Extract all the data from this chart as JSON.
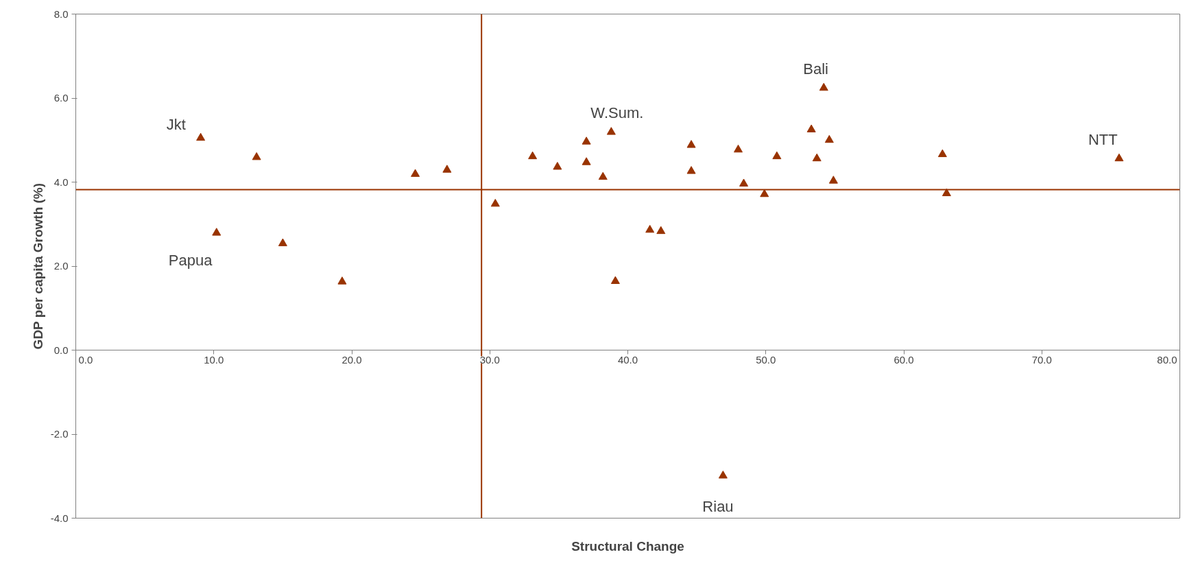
{
  "chart_data": {
    "type": "scatter",
    "xlabel": "Structural Change",
    "ylabel": "GDP per capita Growth (%)",
    "x": [
      9.05,
      10.2,
      13.1,
      15.0,
      19.3,
      24.6,
      26.9,
      30.4,
      33.1,
      34.9,
      37.0,
      37.0,
      38.2,
      38.8,
      39.1,
      41.6,
      42.4,
      44.6,
      44.6,
      46.9,
      48.0,
      48.4,
      49.9,
      50.8,
      53.3,
      54.2,
      53.7,
      54.6,
      54.9,
      62.8,
      63.1,
      75.6
    ],
    "series": [
      {
        "color": "#993300",
        "values": [
          5.05,
          2.79,
          4.59,
          2.54,
          1.63,
          4.19,
          4.29,
          3.48,
          4.61,
          4.36,
          4.96,
          4.47,
          4.12,
          5.19,
          1.64,
          2.86,
          2.83,
          4.26,
          4.88,
          -2.99,
          4.77,
          3.96,
          3.71,
          4.61,
          5.25,
          6.24,
          4.56,
          5.0,
          4.03,
          4.66,
          3.73,
          4.56
        ]
      }
    ],
    "marker": "triangle",
    "grid": false,
    "xlim": [
      0,
      80
    ],
    "ylim": [
      -4,
      8
    ],
    "xticks": [
      {
        "value": 0,
        "label": "0.0"
      },
      {
        "value": 10,
        "label": "10.0"
      },
      {
        "value": 20,
        "label": "20.0"
      },
      {
        "value": 30,
        "label": "30.0"
      },
      {
        "value": 40,
        "label": "40.0"
      },
      {
        "value": 50,
        "label": "50.0"
      },
      {
        "value": 60,
        "label": "60.0"
      },
      {
        "value": 70,
        "label": "70.0"
      },
      {
        "value": 80,
        "label": "80.0"
      }
    ],
    "yticks": [
      {
        "value": -4,
        "label": "-4.0"
      },
      {
        "value": -2,
        "label": "-2.0"
      },
      {
        "value": 0,
        "label": "0.0"
      },
      {
        "value": 2,
        "label": "2.0"
      },
      {
        "value": 4,
        "label": "4.0"
      },
      {
        "value": 6,
        "label": "6.0"
      },
      {
        "value": 8,
        "label": "8.0"
      }
    ],
    "ref_lines": [
      {
        "axis": "x",
        "value": 29.4,
        "color": "#993300"
      },
      {
        "axis": "y",
        "value": 3.82,
        "color": "#993300"
      }
    ],
    "annotations": [
      {
        "text": "Jkt",
        "x": 9.05,
        "y": 5.05
      },
      {
        "text": "Papua",
        "x": 10.2,
        "y": 2.79
      },
      {
        "text": "W.Sum.",
        "x": 38.8,
        "y": 5.19
      },
      {
        "text": "Bali",
        "x": 54.2,
        "y": 6.24
      },
      {
        "text": "Riau",
        "x": 46.9,
        "y": -2.99
      },
      {
        "text": "NTT",
        "x": 75.6,
        "y": 4.56
      }
    ]
  }
}
